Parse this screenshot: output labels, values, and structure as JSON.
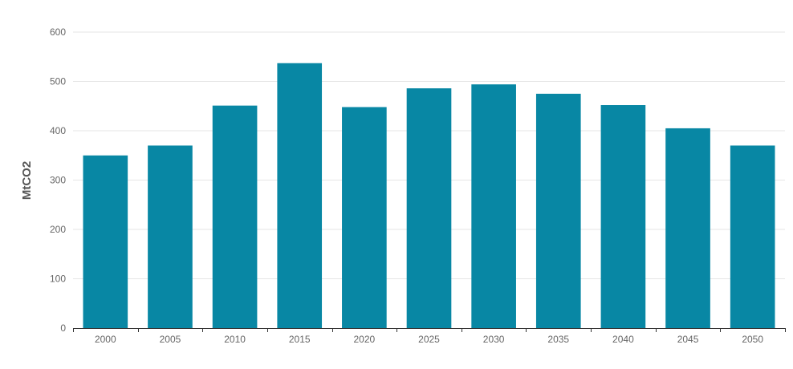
{
  "chart_data": {
    "type": "bar",
    "title": "",
    "xlabel": "",
    "ylabel": "MtCO2",
    "categories": [
      "2000",
      "2005",
      "2010",
      "2015",
      "2020",
      "2025",
      "2030",
      "2035",
      "2040",
      "2045",
      "2050"
    ],
    "values": [
      350,
      370,
      451,
      537,
      448,
      486,
      494,
      475,
      452,
      405,
      370
    ],
    "ylim": [
      0,
      600
    ],
    "yticks": [
      0,
      100,
      200,
      300,
      400,
      500,
      600
    ],
    "grid": true,
    "legend": "none",
    "colors": {
      "bar": "#0887a4",
      "grid": "#e6e6e6",
      "axis": "#333333",
      "tick_label": "#666666",
      "axis_title": "#555555"
    }
  }
}
